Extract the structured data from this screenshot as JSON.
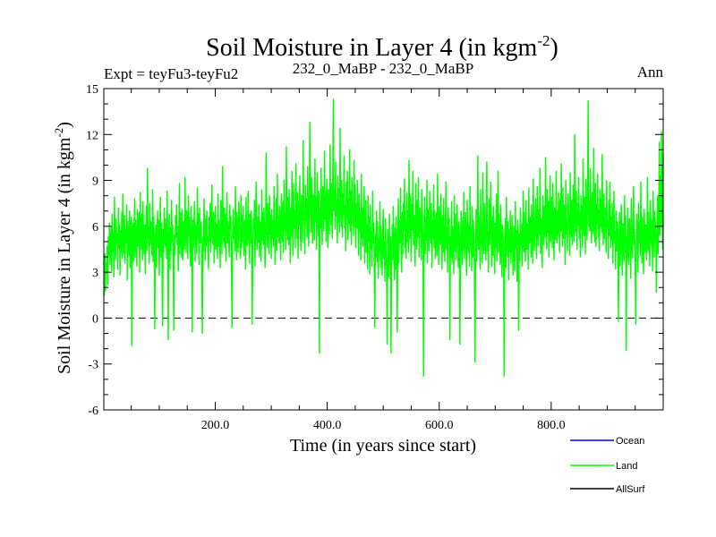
{
  "chart_data": {
    "type": "line",
    "title": "Soil Moisture in Layer 4 (in kgm",
    "title_sup": "-2",
    "title_close": ")",
    "subtitle_left": "Expt = teyFu3-teyFu2",
    "subtitle_center": "232_0_MaBP - 232_0_MaBP",
    "subtitle_right": "Ann",
    "xlabel": "Time (in years since start)",
    "ylabel": "Soil Moisture in Layer 4 (in kgm",
    "ylabel_sup": "-2",
    "ylabel_close": ")",
    "xlim": [
      1,
      1000
    ],
    "ylim": [
      -6,
      15
    ],
    "x_ticks": [
      200,
      400,
      600,
      800
    ],
    "x_tick_labels": [
      "200.0",
      "400.0",
      "600.0",
      "800.0"
    ],
    "y_ticks": [
      -6,
      -3,
      0,
      3,
      6,
      9,
      12,
      15
    ],
    "y_tick_labels": [
      "-6",
      "-3",
      "0",
      "3",
      "6",
      "9",
      "12",
      "15"
    ],
    "reference_line": 0,
    "series": [
      {
        "name": "Land",
        "color": "#00ff00",
        "values": [
          2.4,
          1.5,
          4.2,
          1.8,
          3.6,
          2.9,
          4.7,
          2.2,
          5.3,
          4.1,
          6.2,
          3.5,
          4.8,
          5.9,
          3.1,
          6.8,
          4.4,
          5.6,
          2.7,
          7.9,
          5.1,
          3.8,
          6.5,
          4.9,
          5.5,
          3.2,
          7.2,
          4.6,
          6.1,
          2.8,
          5.7,
          4.3,
          6.9,
          3.9,
          8.1,
          5.4,
          4.2,
          6.7,
          3.6,
          5.8,
          4.9,
          7.4,
          2.5,
          6.3,
          5.0,
          4.1,
          7.0,
          3.3,
          5.9,
          6.6,
          -1.8,
          4.8,
          6.2,
          3.7,
          5.5,
          7.8,
          4.0,
          6.4,
          5.1,
          3.4,
          7.1,
          4.7,
          5.8,
          6.9,
          3.0,
          8.2,
          5.3,
          4.5,
          6.8,
          3.8,
          7.6,
          5.0,
          4.2,
          6.1,
          2.9,
          5.6,
          7.3,
          4.4,
          9.8,
          5.2,
          6.0,
          3.6,
          7.5,
          4.8,
          6.3,
          5.5,
          4.1,
          8.4,
          3.7,
          6.6,
          5.2,
          -0.7,
          4.9,
          6.1,
          3.3,
          5.7,
          7.0,
          4.6,
          6.4,
          2.8,
          5.3,
          7.9,
          4.0,
          6.2,
          3.5,
          -0.5,
          5.8,
          4.3,
          7.2,
          5.1,
          4.7,
          6.5,
          3.9,
          8.3,
          4.6,
          -1.4,
          5.5,
          6.8,
          3.2,
          5.9,
          4.4,
          7.7,
          5.0,
          6.1,
          3.6,
          -0.8,
          5.4,
          4.1,
          6.7,
          5.3,
          7.4,
          4.8,
          6.0,
          3.1,
          5.6,
          8.8,
          4.2,
          6.9,
          5.7,
          4.0,
          7.1,
          3.8,
          6.3,
          5.1,
          4.5,
          9.2,
          5.8,
          4.3,
          7.0,
          6.2,
          3.9,
          8.0,
          5.4,
          6.6,
          4.7,
          3.4,
          7.3,
          5.0,
          -0.9,
          6.4,
          4.6,
          5.9,
          7.6,
          3.7,
          6.1,
          5.5,
          4.2,
          8.5,
          5.1,
          6.8,
          3.5,
          7.2,
          4.9,
          5.7,
          6.3,
          2.9,
          -1.0,
          5.3,
          4.4,
          7.8,
          5.9,
          3.8,
          6.5,
          4.7,
          7.0,
          5.6,
          4.1,
          3.2,
          6.6,
          5.0,
          7.5,
          4.3,
          6.0,
          8.7,
          5.4,
          4.8,
          6.9,
          3.6,
          5.2,
          7.3,
          4.5,
          6.2,
          5.8,
          3.9,
          8.1,
          4.7,
          6.4,
          5.1,
          3.3,
          7.7,
          5.6,
          4.2,
          9.9,
          6.1,
          5.0,
          7.2,
          4.6,
          6.8,
          3.7,
          5.5,
          8.2,
          4.9,
          6.3,
          5.3,
          4.0,
          7.4,
          5.8,
          6.6,
          3.5,
          -0.6,
          4.8,
          7.1,
          5.2,
          6.0,
          4.4,
          8.6,
          5.7,
          3.8,
          6.9,
          5.1,
          4.3,
          7.6,
          6.2,
          5.4,
          3.9,
          8.0,
          4.6,
          6.7,
          5.0,
          7.3,
          4.1,
          5.9,
          6.4,
          3.2,
          7.9,
          5.5,
          4.7,
          6.1,
          8.3,
          5.2,
          3.6,
          6.8,
          4.9,
          7.0,
          5.6,
          -0.4,
          4.2,
          6.5,
          5.8,
          7.7,
          3.4,
          6.0,
          8.9,
          5.3,
          4.5,
          6.6,
          5.0,
          7.4,
          4.0,
          6.3,
          5.7,
          3.7,
          8.4,
          5.1,
          6.9,
          4.8,
          7.2,
          5.4,
          3.3,
          6.2,
          10.8,
          5.9,
          4.6,
          7.5,
          6.1,
          4.2,
          8.0,
          5.5,
          6.7,
          3.9,
          7.1,
          5.2,
          6.4,
          4.7,
          8.6,
          5.8,
          3.5,
          6.0,
          7.8,
          4.4,
          9.4,
          5.3,
          6.6,
          4.9,
          7.3,
          5.6,
          3.8,
          8.1,
          6.2,
          5.0,
          7.6,
          4.3,
          9.0,
          5.7,
          6.8,
          4.5,
          11.2,
          6.3,
          5.1,
          7.9,
          4.8,
          8.4,
          6.0,
          3.6,
          7.2,
          5.4,
          9.6,
          6.5,
          4.1,
          8.8,
          5.9,
          7.0,
          4.6,
          10.1,
          6.7,
          5.2,
          8.2,
          3.9,
          7.5,
          6.1,
          9.3,
          5.5,
          4.4,
          8.0,
          6.9,
          5.0,
          11.6,
          7.3,
          5.8,
          4.2,
          8.7,
          6.4,
          7.8,
          5.3,
          9.9,
          6.0,
          4.7,
          8.5,
          12.8,
          7.1,
          5.6,
          9.2,
          6.6,
          4.9,
          8.1,
          7.4,
          5.1,
          10.4,
          6.3,
          7.9,
          4.5,
          9.5,
          6.8,
          5.4,
          8.3,
          -2.3,
          7.0,
          5.9,
          9.8,
          6.2,
          4.8,
          8.6,
          7.5,
          5.7,
          10.9,
          6.5,
          8.0,
          5.0,
          9.1,
          7.2,
          4.6,
          8.4,
          6.9,
          5.5,
          11.3,
          7.6,
          6.1,
          8.8,
          5.2,
          9.7,
          14.3,
          7.0,
          8.2,
          5.8,
          10.2,
          6.7,
          7.7,
          4.9,
          9.3,
          6.3,
          8.5,
          5.6,
          12.4,
          7.4,
          6.0,
          9.0,
          5.3,
          8.1,
          6.8,
          10.6,
          5.9,
          7.3,
          4.4,
          8.9,
          6.5,
          9.6,
          5.1,
          7.8,
          6.2,
          11.0,
          5.7,
          8.3,
          4.8,
          9.2,
          6.6,
          7.1,
          5.4,
          10.3,
          6.0,
          8.7,
          4.6,
          7.5,
          5.9,
          9.0,
          6.4,
          4.1,
          8.1,
          5.6,
          6.9,
          3.8,
          9.4,
          5.2,
          7.2,
          4.7,
          6.5,
          8.6,
          3.6,
          5.8,
          7.7,
          4.3,
          6.1,
          3.2,
          8.0,
          5.0,
          6.6,
          2.9,
          7.4,
          4.5,
          5.7,
          3.4,
          8.3,
          4.9,
          6.2,
          3.0,
          -0.6,
          5.5,
          4.0,
          7.0,
          3.7,
          6.3,
          2.6,
          5.2,
          4.4,
          7.6,
          3.3,
          6.0,
          4.8,
          2.8,
          5.6,
          7.1,
          3.9,
          5.0,
          2.4,
          6.5,
          4.2,
          3.1,
          -1.7,
          5.8,
          4.6,
          2.7,
          6.8,
          3.5,
          5.3,
          -2.3,
          4.1,
          6.1,
          3.8,
          7.3,
          4.7,
          2.5,
          5.9,
          3.2,
          6.6,
          4.4,
          -0.9,
          5.1,
          7.8,
          3.6,
          6.3,
          4.9,
          8.5,
          5.4,
          3.0,
          6.9,
          4.2,
          7.5,
          5.7,
          9.1,
          4.6,
          6.2,
          3.9,
          8.2,
          5.0,
          7.0,
          4.3,
          10.3,
          6.5,
          5.2,
          8.0,
          3.7,
          7.4,
          5.8,
          9.6,
          4.8,
          6.7,
          5.5,
          3.4,
          8.8,
          6.1,
          4.5,
          7.7,
          5.3,
          9.2,
          4.0,
          6.8,
          7.2,
          5.6,
          3.8,
          8.4,
          6.3,
          4.7,
          -3.8,
          5.9,
          7.9,
          4.2,
          6.6,
          5.1,
          9.0,
          3.6,
          7.1,
          5.7,
          4.4,
          8.3,
          6.0,
          4.9,
          7.5,
          3.3,
          6.4,
          5.2,
          8.7,
          4.6,
          7.0,
          3.9,
          5.8,
          6.9,
          4.1,
          9.4,
          5.4,
          3.5,
          7.3,
          6.2,
          4.8,
          8.1,
          5.5,
          3.2,
          6.7,
          4.3,
          7.8,
          5.0,
          3.7,
          6.1,
          8.9,
          4.5,
          5.9,
          3.0,
          7.2,
          4.9,
          6.5,
          -1.4,
          5.3,
          4.0,
          7.6,
          3.6,
          6.0,
          5.7,
          2.9,
          8.0,
          4.4,
          6.8,
          3.8,
          5.1,
          7.4,
          4.7,
          3.3,
          6.3,
          5.6,
          -1.7,
          4.2,
          7.0,
          5.0,
          3.5,
          6.6,
          4.6,
          8.2,
          3.9,
          5.4,
          6.9,
          4.1,
          2.8,
          7.7,
          5.2,
          4.3,
          6.1,
          3.4,
          8.6,
          4.8,
          5.9,
          3.1,
          7.3,
          4.0,
          6.4,
          5.5,
          2.6,
          -2.9,
          4.7,
          7.1,
          3.7,
          5.8,
          10.6,
          4.5,
          6.7,
          5.1,
          3.2,
          8.4,
          4.9,
          6.2,
          3.6,
          9.5,
          5.3,
          4.2,
          7.5,
          5.7,
          3.8,
          6.9,
          10.2,
          4.4,
          5.6,
          3.0,
          7.8,
          4.8,
          6.0,
          8.9,
          5.0,
          3.4,
          6.6,
          4.1,
          7.3,
          5.4,
          2.9,
          6.2,
          4.6,
          8.1,
          3.7,
          5.9,
          9.6,
          4.3,
          6.8,
          5.1,
          3.5,
          7.4,
          4.7,
          2.7,
          6.1,
          5.5,
          3.9,
          -3.8,
          4.9,
          6.5,
          3.3,
          7.9,
          5.2,
          4.0,
          6.3,
          2.5,
          5.8,
          4.4,
          7.0,
          3.6,
          5.0,
          6.7,
          4.1,
          2.8,
          6.0,
          5.3,
          3.1,
          7.6,
          4.6,
          5.7,
          2.4,
          6.4,
          4.2,
          -0.8,
          5.5,
          3.8,
          7.2,
          4.8,
          6.1,
          3.4,
          5.6,
          8.3,
          4.3,
          6.9,
          5.0,
          3.7,
          7.7,
          4.5,
          6.2,
          5.8,
          3.2,
          8.5,
          4.9,
          5.4,
          6.6,
          4.0,
          7.4,
          5.1,
          3.6,
          9.1,
          5.7,
          4.4,
          6.3,
          7.8,
          5.2,
          3.9,
          8.6,
          6.0,
          4.7,
          7.1,
          5.5,
          9.8,
          4.2,
          6.5,
          5.9,
          3.3,
          8.0,
          6.8,
          4.8,
          7.3,
          5.3,
          10.5,
          6.1,
          4.5,
          8.4,
          5.6,
          7.6,
          4.0,
          6.7,
          9.3,
          5.0,
          6.2,
          7.9,
          4.6,
          8.8,
          5.8,
          3.8,
          7.2,
          6.4,
          5.1,
          9.6,
          4.9,
          7.0,
          5.4,
          8.2,
          6.6,
          4.3,
          7.8,
          5.7,
          10.1,
          6.0,
          4.7,
          8.5,
          5.2,
          7.4,
          6.9,
          3.5,
          9.0,
          5.5,
          6.3,
          4.4,
          8.1,
          7.1,
          5.9,
          4.1,
          9.5,
          6.5,
          5.3,
          7.7,
          4.8,
          8.7,
          6.2,
          5.0,
          12.0,
          6.8,
          5.6,
          8.3,
          4.5,
          7.5,
          6.1,
          9.2,
          5.2,
          6.9,
          4.0,
          8.0,
          5.8,
          7.3,
          4.6,
          10.4,
          6.4,
          5.4,
          7.9,
          4.2,
          9.1,
          6.7,
          5.1,
          8.6,
          14.2,
          6.0,
          7.6,
          5.7,
          9.8,
          6.3,
          4.9,
          8.2,
          7.0,
          5.5,
          11.1,
          6.6,
          5.0,
          8.8,
          4.7,
          7.4,
          6.2,
          9.4,
          5.3,
          7.1,
          4.4,
          8.4,
          6.0,
          7.8,
          5.6,
          10.7,
          6.5,
          4.8,
          8.1,
          5.2,
          7.2,
          6.8,
          4.3,
          9.0,
          5.9,
          6.4,
          3.9,
          7.7,
          5.4,
          8.9,
          4.6,
          6.6,
          5.1,
          7.5,
          3.6,
          6.1,
          8.3,
          4.9,
          5.7,
          3.2,
          7.0,
          4.4,
          6.3,
          5.8,
          -0.2,
          4.1,
          6.9,
          3.4,
          5.5,
          7.4,
          4.7,
          2.8,
          6.2,
          5.0,
          3.7,
          8.0,
          4.3,
          6.7,
          -2.1,
          5.3,
          4.0,
          7.2,
          3.5,
          5.9,
          6.5,
          4.5,
          2.6,
          7.8,
          5.1,
          3.9,
          6.0,
          8.6,
          4.8,
          5.6,
          3.3,
          -0.4,
          4.2,
          6.8,
          5.4,
          3.0,
          7.5,
          4.9,
          6.3,
          4.1,
          8.9,
          5.2,
          3.6,
          6.6,
          4.6,
          2.9,
          7.1,
          5.8,
          4.3,
          6.1,
          3.8,
          5.5,
          9.2,
          4.4,
          6.9,
          5.0,
          3.4,
          7.7,
          5.7,
          4.8,
          6.4,
          3.1,
          8.3,
          5.3,
          4.0,
          7.0,
          6.2,
          4.6,
          1.7,
          5.9,
          8.0,
          4.2,
          6.7,
          11.5,
          5.4,
          9.3,
          6.0,
          12.2,
          7.4,
          4.5,
          10.8
        ]
      }
    ],
    "legend": [
      {
        "label": "Ocean",
        "color": "#0000ff"
      },
      {
        "label": "Land",
        "color": "#00ff00"
      },
      {
        "label": "AllSurf",
        "color": "#000000"
      }
    ]
  }
}
